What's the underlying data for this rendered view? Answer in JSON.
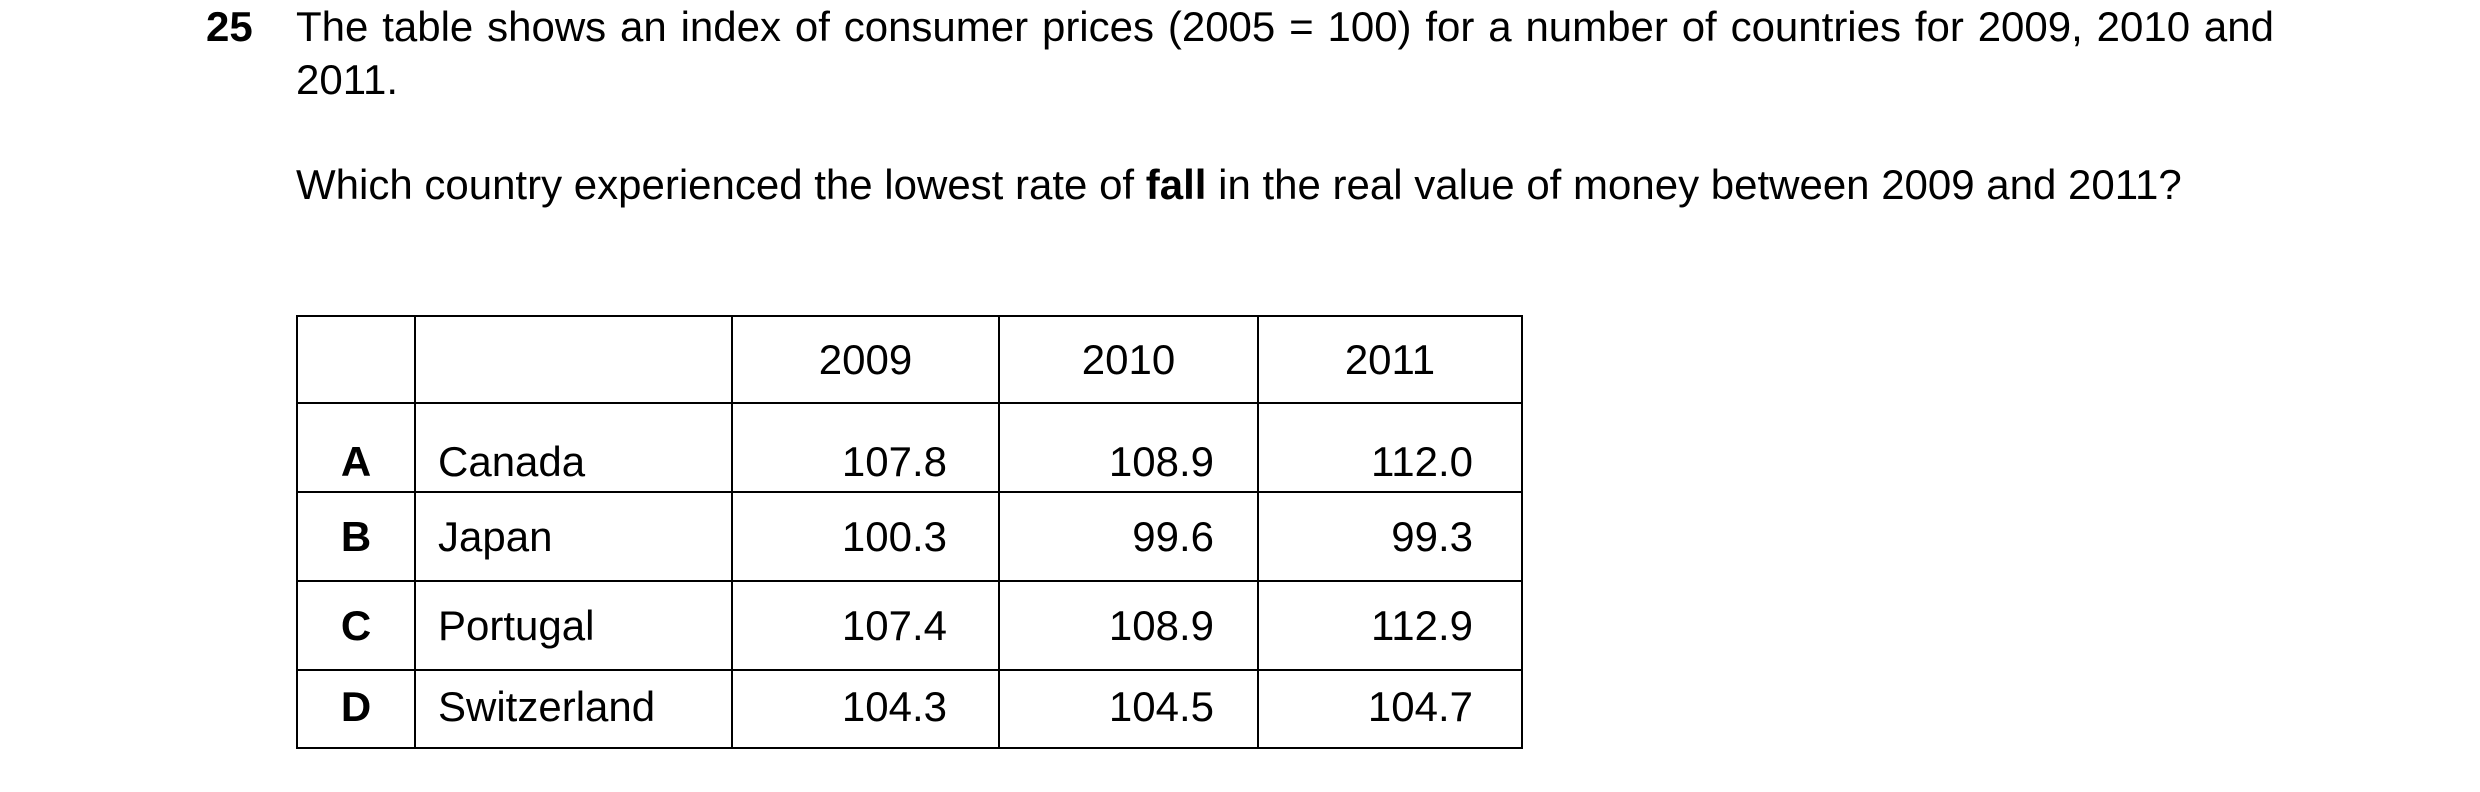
{
  "question": {
    "number": "25",
    "intro": "The table shows an index of consumer prices (2005 = 100) for a number of countries for 2009, 2010 and 2011.",
    "prompt_before_bold": "Which country experienced the lowest rate of ",
    "prompt_bold": "fall",
    "prompt_after_bold": " in the real value of money between 2009 and 2011?"
  },
  "table": {
    "headers": [
      "",
      "",
      "2009",
      "2010",
      "2011"
    ],
    "rows": [
      {
        "option": "A",
        "country": "Canada",
        "y2009": "107.8",
        "y2010": "108.9",
        "y2011": "112.0"
      },
      {
        "option": "B",
        "country": "Japan",
        "y2009": "100.3",
        "y2010": "99.6",
        "y2011": "99.3"
      },
      {
        "option": "C",
        "country": "Portugal",
        "y2009": "107.4",
        "y2010": "108.9",
        "y2011": "112.9"
      },
      {
        "option": "D",
        "country": "Switzerland",
        "y2009": "104.3",
        "y2010": "104.5",
        "y2011": "104.7"
      }
    ]
  }
}
